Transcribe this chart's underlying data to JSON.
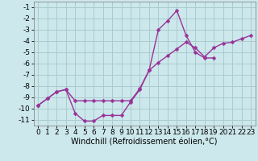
{
  "xlabel": "Windchill (Refroidissement éolien,°C)",
  "background_color": "#cce8ec",
  "grid_color": "#aacccc",
  "line_color": "#993399",
  "x_values": [
    0,
    1,
    2,
    3,
    4,
    5,
    6,
    7,
    8,
    9,
    10,
    11,
    12,
    13,
    14,
    15,
    16,
    17,
    18,
    19,
    20,
    21,
    22,
    23
  ],
  "line1_y": [
    -9.7,
    -9.1,
    -8.5,
    -8.3,
    -9.3,
    -9.3,
    -9.3,
    -9.3,
    -9.3,
    -9.3,
    -9.3,
    -8.2,
    -6.6,
    -5.9,
    -5.3,
    -4.7,
    -4.1,
    -4.6,
    -5.4,
    -4.6,
    -4.2,
    -4.1,
    -3.8,
    -3.5
  ],
  "line2_y": [
    -9.7,
    -9.1,
    -8.5,
    -8.3,
    -10.4,
    -11.1,
    -11.1,
    -10.6,
    -10.6,
    -10.6,
    -9.4,
    -8.3,
    -6.6,
    -3.0,
    -2.2,
    -1.3,
    -3.5,
    -5.0,
    -5.5,
    -5.5,
    null,
    null,
    null,
    null
  ],
  "xlim": [
    -0.5,
    23.5
  ],
  "ylim": [
    -11.5,
    -0.5
  ],
  "yticks": [
    -11,
    -10,
    -9,
    -8,
    -7,
    -6,
    -5,
    -4,
    -3,
    -2,
    -1
  ],
  "xticks": [
    0,
    1,
    2,
    3,
    4,
    5,
    6,
    7,
    8,
    9,
    10,
    11,
    12,
    13,
    14,
    15,
    16,
    17,
    18,
    19,
    20,
    21,
    22,
    23
  ],
  "marker": "D",
  "marker_size": 2.5,
  "line_width": 1.0,
  "xlabel_fontsize": 7,
  "tick_fontsize": 6.5
}
